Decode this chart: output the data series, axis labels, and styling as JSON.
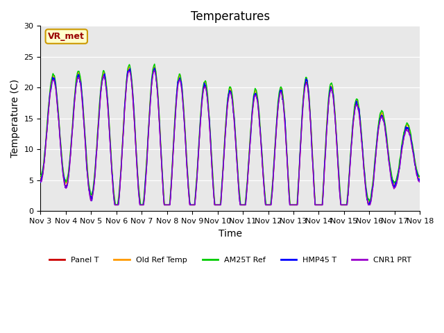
{
  "title": "Temperatures",
  "ylabel": "Temperature (C)",
  "xlabel": "Time",
  "ylim": [
    0,
    30
  ],
  "background_color": "#e8e8e8",
  "xtick_labels": [
    "Nov 3",
    "Nov 4",
    "Nov 5",
    "Nov 6",
    "Nov 7",
    "Nov 8",
    "Nov 9",
    "Nov 10",
    "Nov 11",
    "Nov 12",
    "Nov 13",
    "Nov 14",
    "Nov 15",
    "Nov 16",
    "Nov 17",
    "Nov 18"
  ],
  "annotation_text": "VR_met",
  "legend_labels": [
    "Panel T",
    "Old Ref Temp",
    "AM25T Ref",
    "HMP45 T",
    "CNR1 PRT"
  ],
  "line_colors": [
    "#cc0000",
    "#ff9900",
    "#00cc00",
    "#0000ff",
    "#9900cc"
  ],
  "title_fontsize": 12,
  "axis_fontsize": 10,
  "tick_fontsize": 8
}
